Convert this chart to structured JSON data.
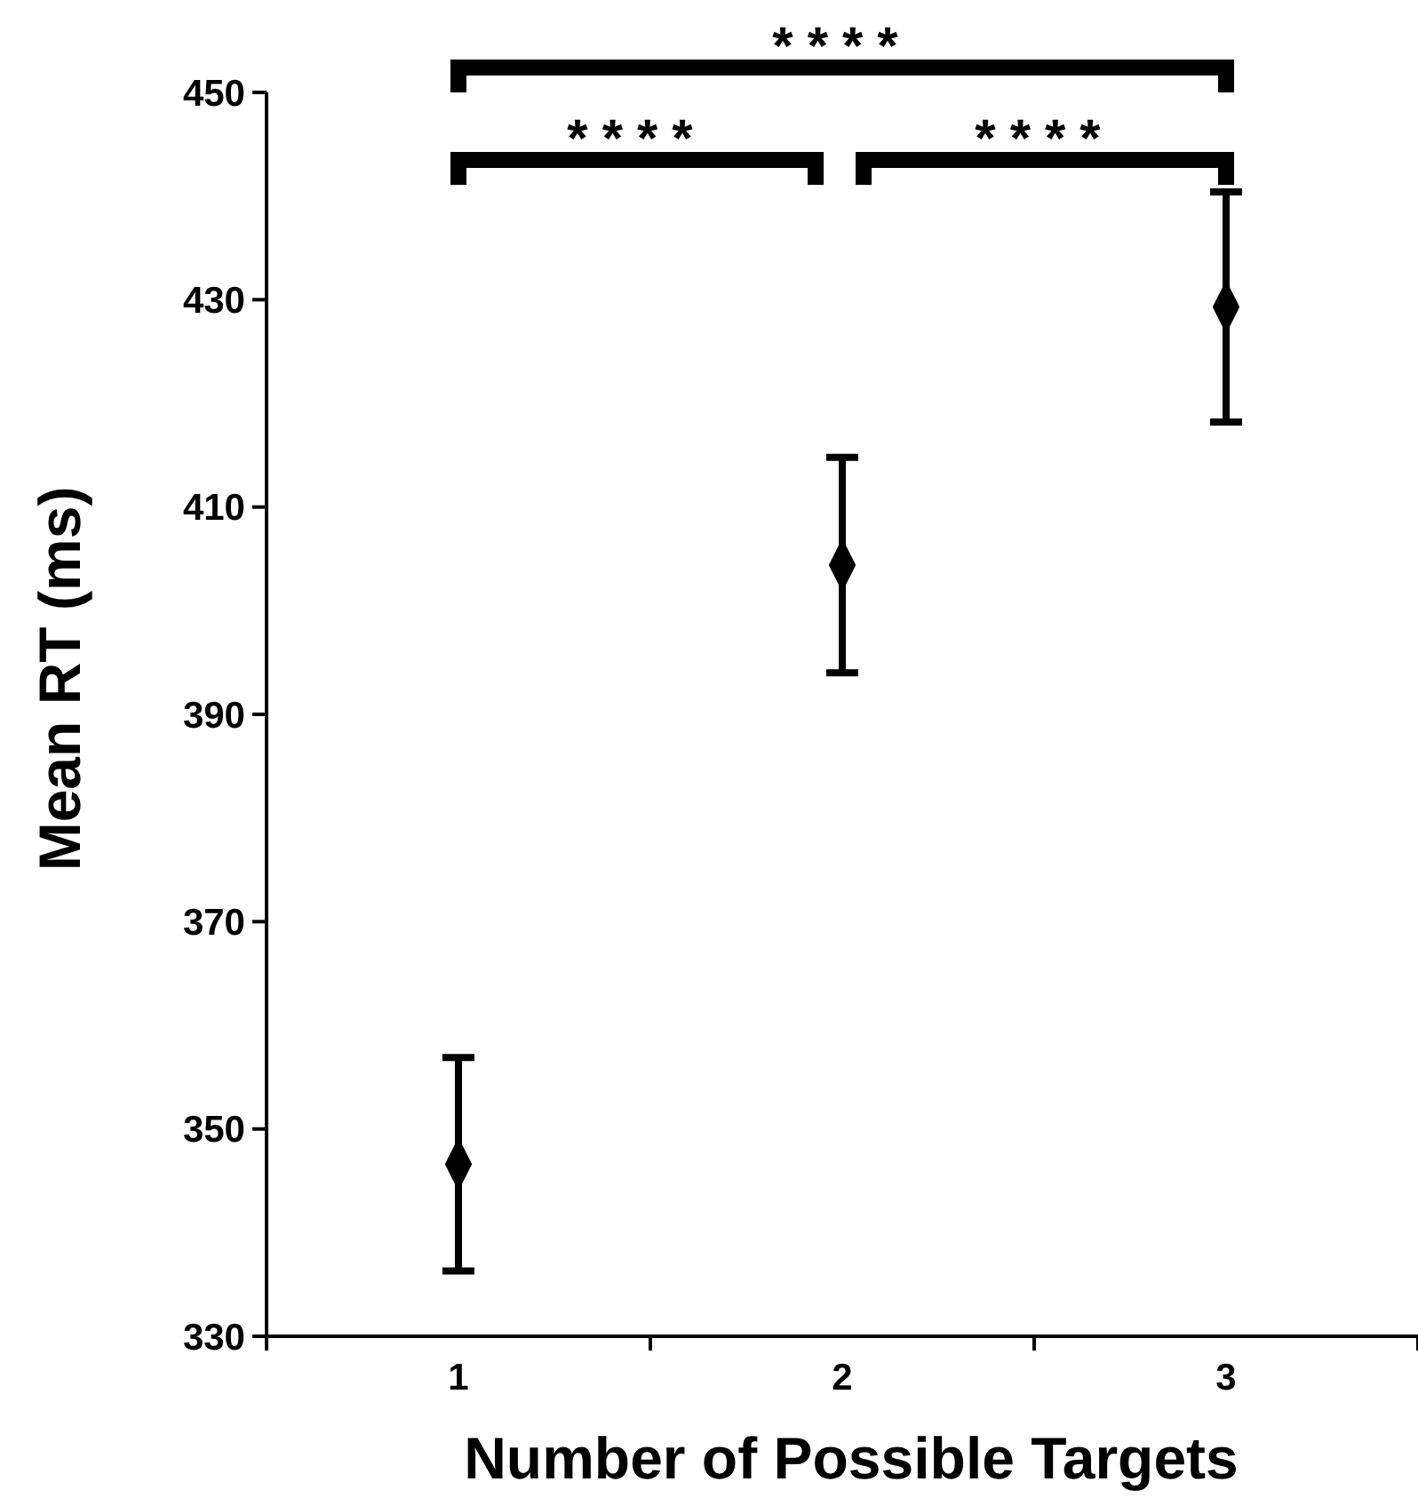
{
  "chart_data": {
    "type": "scatter",
    "xlabel": "Number of Possible Targets",
    "ylabel": "Mean RT (ms)",
    "categories": [
      "1",
      "2",
      "3"
    ],
    "series": [
      {
        "color": "#000000",
        "values": [
          346.6,
          404.4,
          429.3
        ],
        "errors": [
          10.3,
          10.4,
          11.1
        ]
      }
    ],
    "ylim": [
      330,
      450
    ],
    "yticks": [
      330,
      350,
      370,
      390,
      410,
      430,
      450
    ],
    "marker": "diamond",
    "grid": false,
    "annotations": [
      "****",
      "****",
      "****"
    ]
  }
}
